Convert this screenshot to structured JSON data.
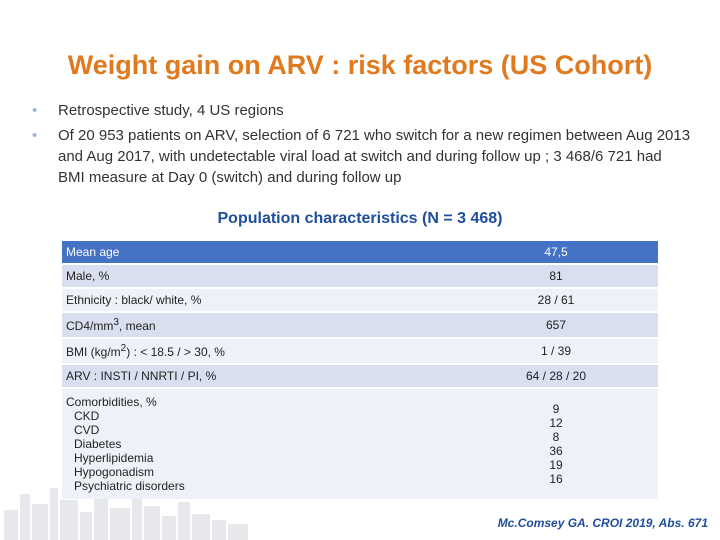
{
  "title": "Weight gain on ARV : risk factors (US Cohort)",
  "bullets": [
    "Retrospective study, 4 US regions",
    "Of 20 953 patients on ARV, selection of 6 721 who switch for a new regimen between Aug 2013 and Aug 2017, with undetectable viral load at switch and during follow up ; 3 468/6 721 had BMI measure at Day 0 (switch) and during follow up"
  ],
  "population": {
    "title": "Population characteristics (N = 3 468)",
    "rows": [
      {
        "label": "Mean age",
        "value": "47,5"
      },
      {
        "label": "Male, %",
        "value": "81"
      },
      {
        "label": "Ethnicity : black/ white, %",
        "value": "28 / 61"
      },
      {
        "label_pre": "CD4/mm",
        "label_sup": "3",
        "label_post": ", mean",
        "value": "657"
      },
      {
        "label_pre": "BMI (kg/m",
        "label_sup": "2",
        "label_post": ") : < 18.5 / > 30, %",
        "value": "1 / 39"
      },
      {
        "label": "ARV : INSTI / NNRTI / PI, %",
        "value": "64 / 28 / 20"
      }
    ],
    "comorbidities": {
      "label": "Comorbidities, %",
      "items": [
        {
          "name": "CKD",
          "value": "9"
        },
        {
          "name": "CVD",
          "value": "12"
        },
        {
          "name": "Diabetes",
          "value": "8"
        },
        {
          "name": "Hyperlipidemia",
          "value": "36"
        },
        {
          "name": "Hypogonadism",
          "value": "19"
        },
        {
          "name": "Psychiatric disorders",
          "value": "16"
        }
      ]
    }
  },
  "citation": "Mc.Comsey GA. CROI 2019, Abs. 671",
  "colors": {
    "title": "#e07a1f",
    "accent": "#1f4e9c",
    "header_row": "#4472c4"
  }
}
